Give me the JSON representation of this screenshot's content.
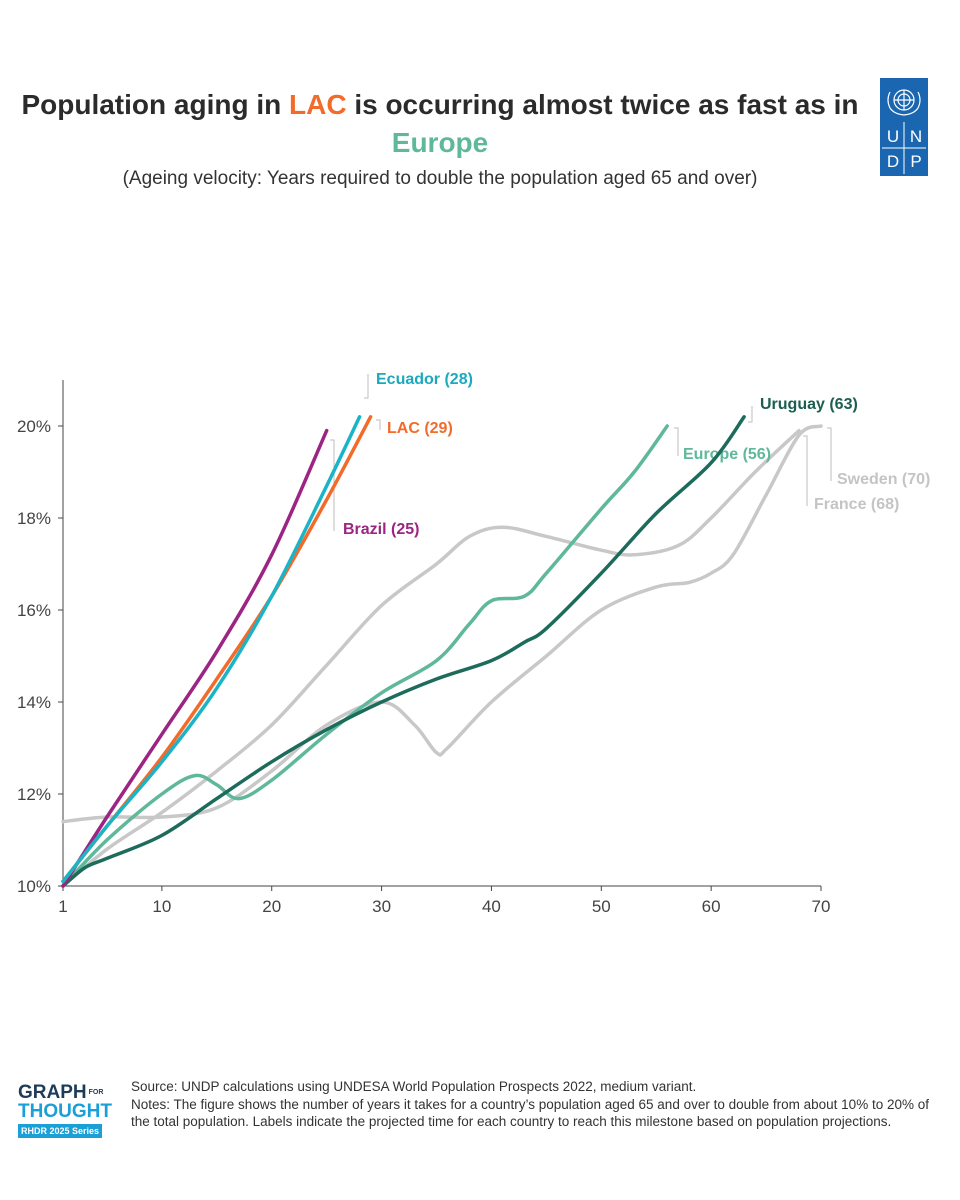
{
  "header": {
    "title_part1": "Population aging in ",
    "title_lac": "LAC",
    "title_part2": " is occurring almost twice as fast as in",
    "title_europe": "Europe",
    "subtitle": "(Ageing velocity: Years required to double the population aged 65 and over)",
    "logo_text": [
      "U",
      "N",
      "D",
      "P"
    ]
  },
  "chart_data": {
    "type": "line",
    "title": "Population aging in LAC is occurring almost twice as fast as in Europe",
    "subtitle": "(Ageing velocity: Years required to double the population aged 65 and over)",
    "xlim": [
      1,
      70
    ],
    "ylim": [
      10,
      21
    ],
    "x_ticks": [
      1,
      10,
      20,
      30,
      40,
      50,
      60,
      70
    ],
    "y_ticks": [
      10,
      12,
      14,
      16,
      18,
      20
    ],
    "y_tick_labels": [
      "10%",
      "12%",
      "14%",
      "16%",
      "18%",
      "20%"
    ],
    "grid": false,
    "series": [
      {
        "name": "Sweden (70)",
        "label": "Sweden (70)",
        "color": "#c8c8c8",
        "label_color": "#c4c4c4",
        "x": [
          1,
          5,
          10,
          15,
          20,
          25,
          30,
          33,
          35,
          36,
          40,
          45,
          50,
          55,
          58,
          60,
          62,
          65,
          68,
          70
        ],
        "y": [
          11.4,
          11.5,
          11.5,
          11.7,
          12.5,
          13.5,
          14.0,
          13.5,
          12.9,
          13.0,
          14.0,
          15.0,
          16.0,
          16.5,
          16.6,
          16.8,
          17.2,
          18.5,
          19.8,
          20.0
        ]
      },
      {
        "name": "France (68)",
        "label": "France (68)",
        "color": "#c8c8c8",
        "label_color": "#c4c4c4",
        "x": [
          1,
          5,
          10,
          15,
          20,
          25,
          30,
          35,
          38,
          41,
          45,
          50,
          53,
          57,
          60,
          64,
          68
        ],
        "y": [
          10.0,
          10.8,
          11.6,
          12.5,
          13.5,
          14.8,
          16.1,
          17.0,
          17.6,
          17.8,
          17.6,
          17.3,
          17.2,
          17.4,
          18.0,
          19.0,
          19.9
        ]
      },
      {
        "name": "Europe (56)",
        "label": "Europe (56)",
        "color": "#5fb89a",
        "label_color": "#5fb89a",
        "x": [
          1,
          5,
          10,
          13,
          15,
          17,
          20,
          25,
          30,
          35,
          38,
          40,
          43,
          45,
          50,
          53,
          56
        ],
        "y": [
          10.0,
          11.0,
          12.0,
          12.4,
          12.2,
          11.9,
          12.3,
          13.3,
          14.2,
          14.9,
          15.7,
          16.2,
          16.3,
          16.8,
          18.2,
          19.0,
          20.0
        ]
      },
      {
        "name": "Uruguay (63)",
        "label": "Uruguay (63)",
        "color": "#1d6b5b",
        "label_color": "#1d5e52",
        "x": [
          1,
          3,
          5,
          10,
          15,
          20,
          25,
          30,
          35,
          40,
          43,
          45,
          50,
          55,
          60,
          63
        ],
        "y": [
          10.0,
          10.4,
          10.6,
          11.1,
          11.9,
          12.7,
          13.4,
          14.0,
          14.5,
          14.9,
          15.3,
          15.6,
          16.8,
          18.1,
          19.2,
          20.2
        ]
      },
      {
        "name": "Brazil (25)",
        "label": "Brazil (25)",
        "color": "#9c2483",
        "label_color": "#9c2483",
        "x": [
          1,
          5,
          10,
          15,
          20,
          25
        ],
        "y": [
          10.0,
          11.5,
          13.3,
          15.1,
          17.2,
          19.9
        ]
      },
      {
        "name": "LAC (29)",
        "label": "LAC (29)",
        "color": "#f26b2a",
        "label_color": "#f26b2a",
        "x": [
          1,
          5,
          10,
          15,
          20,
          25,
          29
        ],
        "y": [
          10.1,
          11.3,
          12.8,
          14.5,
          16.3,
          18.4,
          20.2
        ]
      },
      {
        "name": "Ecuador (28)",
        "label": "Ecuador (28)",
        "color": "#1bb3c6",
        "label_color": "#1aa9bd",
        "x": [
          1,
          5,
          10,
          15,
          20,
          25,
          28
        ],
        "y": [
          10.1,
          11.3,
          12.7,
          14.3,
          16.3,
          18.7,
          20.2
        ]
      }
    ]
  },
  "footer": {
    "logo_graph": "GRAPH",
    "logo_for": "FOR",
    "logo_thought": "THOUGHT",
    "logo_series": "RHDR 2025 Series",
    "source": "Source: UNDP calculations using UNDESA World Population Prospects 2022, medium variant.",
    "notes": "Notes: The figure shows the number of years it takes for a country’s population aged 65 and over to double from about 10% to 20% of the total population. Labels indicate the projected time for each country to reach this milestone based on population projections."
  }
}
